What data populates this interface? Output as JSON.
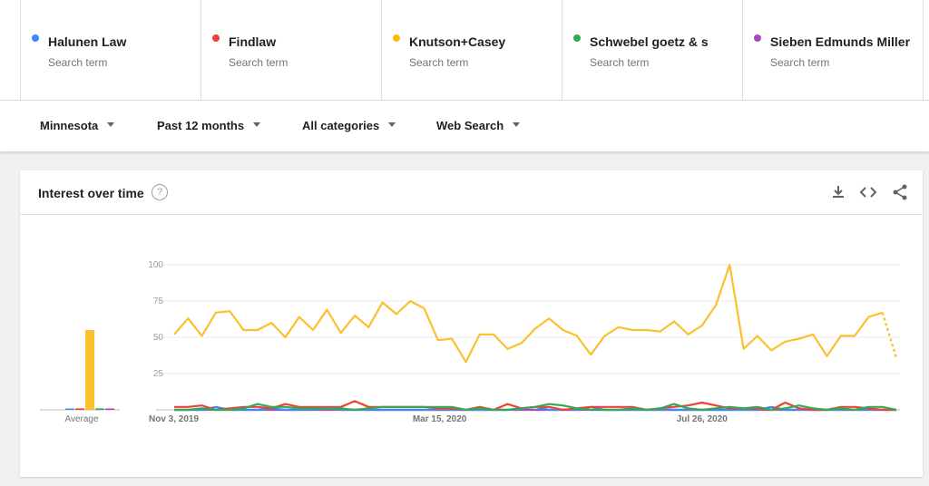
{
  "terms": [
    {
      "name": "Halunen Law",
      "sub": "Search term",
      "color": "#4285f4"
    },
    {
      "name": "Findlaw",
      "sub": "Search term",
      "color": "#ea4335"
    },
    {
      "name": "Knutson+Casey",
      "sub": "Search term",
      "color": "#fbbc04"
    },
    {
      "name": "Schwebel goetz & sieben",
      "sub": "Search term",
      "color": "#34a853"
    },
    {
      "name": "Sieben Edmunds Miller",
      "sub": "Search term",
      "color": "#ab47bc"
    }
  ],
  "filters": {
    "region": "Minnesota",
    "time": "Past 12 months",
    "category": "All categories",
    "search_type": "Web Search"
  },
  "card": {
    "title": "Interest over time",
    "help_icon": "help-icon",
    "tools": [
      "download-icon",
      "embed-icon",
      "share-icon"
    ]
  },
  "chart_data": {
    "type": "line",
    "title": "",
    "xlabel": "",
    "ylabel": "",
    "ylim": [
      0,
      100
    ],
    "yticks": [
      25,
      50,
      75,
      100
    ],
    "x_tick_labels": [
      "Nov 3, 2019",
      "Mar 15, 2020",
      "Jul 26, 2020"
    ],
    "x_tick_indices": [
      0,
      19,
      38
    ],
    "grid": true,
    "average_label": "Average",
    "averages": [
      {
        "name": "Halunen Law",
        "value": 0
      },
      {
        "name": "Findlaw",
        "value": 1
      },
      {
        "name": "Knutson+Casey",
        "value": 55
      },
      {
        "name": "Schwebel goetz & sieben",
        "value": 1
      },
      {
        "name": "Sieben Edmunds Miller",
        "value": 0
      }
    ],
    "series": [
      {
        "name": "Knutson+Casey",
        "color": "#fbc02d",
        "partial_last": true,
        "values": [
          52,
          63,
          51,
          67,
          68,
          55,
          55,
          60,
          50,
          64,
          55,
          69,
          53,
          65,
          57,
          74,
          66,
          75,
          70,
          48,
          49,
          33,
          52,
          52,
          42,
          46,
          56,
          63,
          55,
          51,
          38,
          51,
          57,
          55,
          55,
          54,
          61,
          52,
          58,
          72,
          100,
          42,
          51,
          41,
          47,
          49,
          52,
          37,
          51,
          51,
          64,
          67,
          36
        ]
      },
      {
        "name": "Findlaw",
        "color": "#ea4335",
        "values": [
          2,
          2,
          3,
          0,
          1,
          2,
          2,
          1,
          4,
          2,
          2,
          2,
          2,
          6,
          2,
          2,
          2,
          2,
          2,
          1,
          1,
          0,
          2,
          0,
          4,
          1,
          2,
          2,
          0,
          1,
          2,
          2,
          2,
          2,
          0,
          1,
          2,
          3,
          5,
          3,
          1,
          1,
          1,
          0,
          5,
          1,
          0,
          0,
          2,
          2,
          1,
          0,
          0
        ]
      },
      {
        "name": "Schwebel goetz & sieben",
        "color": "#34a853",
        "values": [
          0,
          0,
          1,
          0,
          0,
          1,
          4,
          2,
          2,
          1,
          1,
          1,
          1,
          0,
          1,
          2,
          2,
          2,
          2,
          2,
          2,
          0,
          1,
          0,
          0,
          1,
          2,
          4,
          3,
          1,
          0,
          0,
          0,
          1,
          0,
          1,
          4,
          1,
          0,
          1,
          2,
          1,
          2,
          0,
          1,
          3,
          1,
          0,
          1,
          0,
          2,
          2,
          0
        ]
      },
      {
        "name": "Halunen Law",
        "color": "#4285f4",
        "values": [
          0,
          0,
          0,
          2,
          0,
          0,
          0,
          1,
          0,
          0,
          0,
          1,
          0,
          0,
          0,
          0,
          0,
          0,
          0,
          0,
          0,
          0,
          0,
          0,
          0,
          1,
          2,
          0,
          0,
          0,
          2,
          0,
          0,
          0,
          0,
          0,
          0,
          0,
          0,
          0,
          0,
          0,
          0,
          2,
          0,
          0,
          0,
          0,
          0,
          0,
          0,
          0,
          0
        ]
      },
      {
        "name": "Sieben Edmunds Miller",
        "color": "#ab47bc",
        "values": [
          0,
          0,
          0,
          0,
          0,
          0,
          0,
          0,
          0,
          0,
          0,
          0,
          0,
          0,
          0,
          0,
          0,
          0,
          0,
          0,
          0,
          0,
          0,
          0,
          0,
          0,
          0,
          0,
          0,
          0,
          0,
          0,
          0,
          0,
          0,
          0,
          0,
          0,
          0,
          0,
          0,
          0,
          0,
          0,
          0,
          0,
          0,
          0,
          0,
          0,
          0,
          0,
          0
        ]
      }
    ]
  }
}
